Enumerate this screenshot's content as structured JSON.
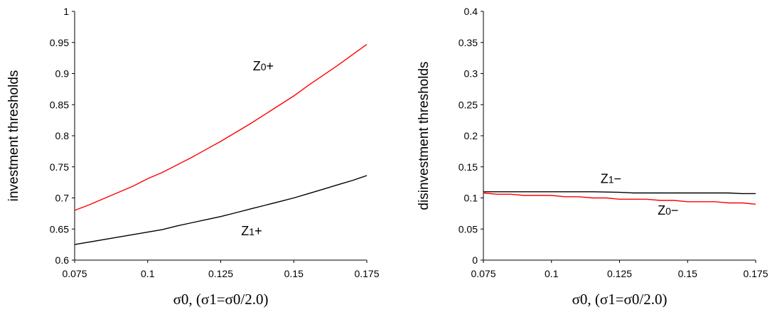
{
  "chart_data": [
    {
      "type": "line",
      "title": "",
      "xlabel": "σ0, (σ1=σ0/2.0)",
      "ylabel": "investment thresholds",
      "xlim": [
        0.075,
        0.175
      ],
      "ylim": [
        0.6,
        1.0
      ],
      "x_ticks": [
        "0.075",
        "0.1",
        "0.125",
        "0.15",
        "0.175"
      ],
      "y_ticks": [
        "0.6",
        "0.65",
        "0.7",
        "0.75",
        "0.8",
        "0.85",
        "0.9",
        "0.95",
        "1"
      ],
      "grid": false,
      "series": [
        {
          "name": "Z0+",
          "color": "#ff0000",
          "x": [
            0.075,
            0.08,
            0.085,
            0.09,
            0.095,
            0.1,
            0.105,
            0.11,
            0.115,
            0.12,
            0.125,
            0.13,
            0.135,
            0.14,
            0.145,
            0.15,
            0.155,
            0.16,
            0.165,
            0.17,
            0.175
          ],
          "y": [
            0.68,
            0.689,
            0.699,
            0.709,
            0.719,
            0.731,
            0.741,
            0.753,
            0.765,
            0.778,
            0.791,
            0.805,
            0.819,
            0.834,
            0.849,
            0.864,
            0.881,
            0.897,
            0.913,
            0.93,
            0.947
          ]
        },
        {
          "name": "Z1+",
          "color": "#000000",
          "x": [
            0.075,
            0.08,
            0.085,
            0.09,
            0.095,
            0.1,
            0.105,
            0.11,
            0.115,
            0.12,
            0.125,
            0.13,
            0.135,
            0.14,
            0.145,
            0.15,
            0.155,
            0.16,
            0.165,
            0.17,
            0.175
          ],
          "y": [
            0.625,
            0.629,
            0.633,
            0.637,
            0.641,
            0.645,
            0.649,
            0.655,
            0.66,
            0.665,
            0.67,
            0.676,
            0.682,
            0.688,
            0.694,
            0.7,
            0.707,
            0.714,
            0.721,
            0.728,
            0.736
          ]
        }
      ],
      "annotations": [
        {
          "text": "Z0+",
          "x": 0.136,
          "y": 0.905
        },
        {
          "text": "Z1+",
          "x": 0.132,
          "y": 0.64
        }
      ]
    },
    {
      "type": "line",
      "title": "",
      "xlabel": "σ0, (σ1=σ0/2.0)",
      "ylabel": "disinvestment thresholds",
      "xlim": [
        0.075,
        0.175
      ],
      "ylim": [
        0,
        0.4
      ],
      "x_ticks": [
        "0.075",
        "0.1",
        "0.125",
        "0.15",
        "0.175"
      ],
      "y_ticks": [
        "0",
        "0.05",
        "0.1",
        "0.15",
        "0.2",
        "0.25",
        "0.3",
        "0.35",
        "0.4"
      ],
      "grid": false,
      "series": [
        {
          "name": "Z1−",
          "color": "#000000",
          "x": [
            0.075,
            0.085,
            0.095,
            0.105,
            0.115,
            0.125,
            0.13,
            0.14,
            0.15,
            0.16,
            0.165,
            0.17,
            0.175
          ],
          "y": [
            0.11,
            0.11,
            0.11,
            0.11,
            0.11,
            0.109,
            0.108,
            0.108,
            0.108,
            0.108,
            0.108,
            0.107,
            0.107
          ]
        },
        {
          "name": "Z0−",
          "color": "#ff0000",
          "x": [
            0.075,
            0.08,
            0.085,
            0.09,
            0.095,
            0.1,
            0.105,
            0.11,
            0.115,
            0.12,
            0.125,
            0.13,
            0.135,
            0.14,
            0.145,
            0.15,
            0.155,
            0.16,
            0.165,
            0.17,
            0.175
          ],
          "y": [
            0.108,
            0.106,
            0.106,
            0.104,
            0.104,
            0.104,
            0.102,
            0.102,
            0.1,
            0.1,
            0.098,
            0.098,
            0.098,
            0.096,
            0.096,
            0.094,
            0.094,
            0.094,
            0.092,
            0.092,
            0.09
          ]
        }
      ],
      "annotations": [
        {
          "text": "Z1−",
          "x": 0.118,
          "y": 0.124
        },
        {
          "text": "Z0−",
          "x": 0.139,
          "y": 0.073
        }
      ]
    }
  ]
}
